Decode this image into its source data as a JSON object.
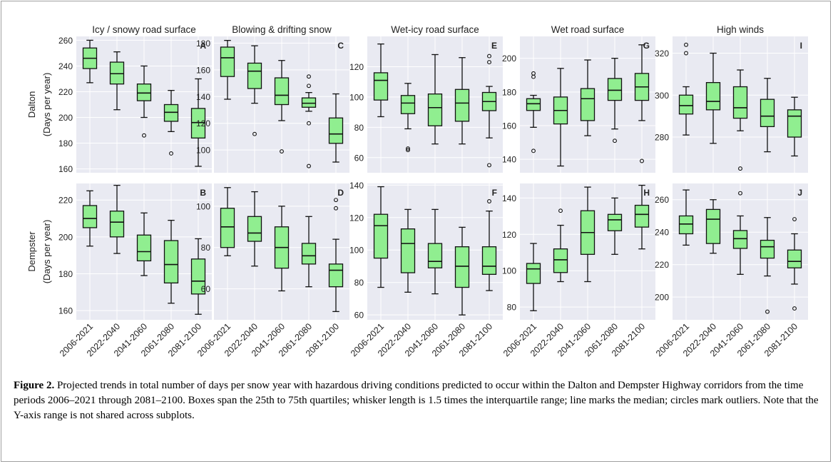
{
  "figure": {
    "label": "Figure 2.",
    "caption": " Projected trends in total number of days per snow year with hazardous driving conditions predicted to occur within the Dalton and Dempster Highway corridors from the time periods 2006–2021 through 2081–2100. Boxes span the 25th to 75th quartiles; whisker length is 1.5 times the interquartile range; line marks the median; circles mark outliers. Note that the Y-axis range is not shared across subplots."
  },
  "colors": {
    "panel_bg": "#e9eaf2",
    "grid": "#ffffff",
    "box_fill": "#90ee90",
    "edge": "#111111"
  },
  "chart_data": {
    "type": "box",
    "categories": [
      "2006-2021",
      "2022-2040",
      "2041-2060",
      "2061-2080",
      "2081-2100"
    ],
    "rows": [
      {
        "name": "Dalton",
        "ylabel": "(Days per year)"
      },
      {
        "name": "Dempster",
        "ylabel": "(Days per year)"
      }
    ],
    "columns": [
      "Icy / snowy road surface",
      "Blowing & drifting snow",
      "Wet-icy road surface",
      "Wet road surface",
      "High winds"
    ],
    "panels": [
      {
        "letter": "A",
        "row": 0,
        "col": 0,
        "ylim": [
          157,
          263
        ],
        "yticks": [
          160,
          180,
          200,
          220,
          240,
          260
        ],
        "boxes": [
          {
            "whislo": 227,
            "q1": 238,
            "med": 246,
            "q3": 254,
            "whishi": 260,
            "fliers": []
          },
          {
            "whislo": 206,
            "q1": 226,
            "med": 234,
            "q3": 243,
            "whishi": 251,
            "fliers": []
          },
          {
            "whislo": 200,
            "q1": 213,
            "med": 219,
            "q3": 226,
            "whishi": 240,
            "fliers": [
              186
            ]
          },
          {
            "whislo": 189,
            "q1": 197,
            "med": 204,
            "q3": 210,
            "whishi": 221,
            "fliers": [
              172
            ]
          },
          {
            "whislo": 162,
            "q1": 184,
            "med": 196,
            "q3": 207,
            "whishi": 230,
            "fliers": []
          }
        ]
      },
      {
        "letter": "C",
        "row": 0,
        "col": 1,
        "ylim": [
          83,
          185
        ],
        "yticks": [
          100,
          120,
          140,
          160,
          180
        ],
        "boxes": [
          {
            "whislo": 138,
            "q1": 155,
            "med": 169,
            "q3": 177,
            "whishi": 182,
            "fliers": []
          },
          {
            "whislo": 135,
            "q1": 146,
            "med": 159,
            "q3": 165,
            "whishi": 178,
            "fliers": [
              112
            ]
          },
          {
            "whislo": 122,
            "q1": 134,
            "med": 141,
            "q3": 154,
            "whishi": 167,
            "fliers": [
              99
            ]
          },
          {
            "whislo": 129,
            "q1": 132,
            "med": 135,
            "q3": 139,
            "whishi": 143,
            "fliers": [
              155,
              148,
              120,
              88
            ]
          },
          {
            "whislo": 91,
            "q1": 105,
            "med": 112,
            "q3": 124,
            "whishi": 142,
            "fliers": []
          }
        ]
      },
      {
        "letter": "E",
        "row": 0,
        "col": 2,
        "ylim": [
          50,
          140
        ],
        "yticks": [
          60,
          80,
          100,
          120
        ],
        "boxes": [
          {
            "whislo": 87,
            "q1": 98,
            "med": 111,
            "q3": 116,
            "whishi": 135,
            "fliers": []
          },
          {
            "whislo": 79,
            "q1": 89,
            "med": 96,
            "q3": 101,
            "whishi": 109,
            "fliers": [
              66,
              65
            ]
          },
          {
            "whislo": 69,
            "q1": 81,
            "med": 93,
            "q3": 102,
            "whishi": 128,
            "fliers": []
          },
          {
            "whislo": 69,
            "q1": 84,
            "med": 96,
            "q3": 105,
            "whishi": 126,
            "fliers": []
          },
          {
            "whislo": 73,
            "q1": 91,
            "med": 97,
            "q3": 103,
            "whishi": 107,
            "fliers": [
              127,
              123,
              55
            ]
          }
        ]
      },
      {
        "letter": "G",
        "row": 0,
        "col": 3,
        "ylim": [
          132,
          213
        ],
        "yticks": [
          140,
          160,
          180,
          200
        ],
        "boxes": [
          {
            "whislo": 159,
            "q1": 169,
            "med": 173,
            "q3": 176,
            "whishi": 178,
            "fliers": [
              191,
              189,
              145
            ]
          },
          {
            "whislo": 136,
            "q1": 161,
            "med": 169,
            "q3": 177,
            "whishi": 194,
            "fliers": []
          },
          {
            "whislo": 154,
            "q1": 163,
            "med": 176,
            "q3": 182,
            "whishi": 199,
            "fliers": []
          },
          {
            "whislo": 158,
            "q1": 175,
            "med": 181,
            "q3": 188,
            "whishi": 200,
            "fliers": [
              151
            ]
          },
          {
            "whislo": 163,
            "q1": 175,
            "med": 183,
            "q3": 191,
            "whishi": 208,
            "fliers": [
              139
            ]
          }
        ]
      },
      {
        "letter": "I",
        "row": 0,
        "col": 4,
        "ylim": [
          263,
          328
        ],
        "yticks": [
          280,
          300,
          320
        ],
        "boxes": [
          {
            "whislo": 281,
            "q1": 291,
            "med": 295,
            "q3": 300,
            "whishi": 304,
            "fliers": [
              324,
              320
            ]
          },
          {
            "whislo": 277,
            "q1": 293,
            "med": 297,
            "q3": 306,
            "whishi": 320,
            "fliers": []
          },
          {
            "whislo": 283,
            "q1": 289,
            "med": 294,
            "q3": 304,
            "whishi": 312,
            "fliers": [
              265
            ]
          },
          {
            "whislo": 273,
            "q1": 285,
            "med": 290,
            "q3": 298,
            "whishi": 308,
            "fliers": []
          },
          {
            "whislo": 271,
            "q1": 280,
            "med": 290,
            "q3": 293,
            "whishi": 299,
            "fliers": []
          }
        ]
      },
      {
        "letter": "B",
        "row": 1,
        "col": 0,
        "ylim": [
          155,
          229
        ],
        "yticks": [
          160,
          180,
          200,
          220
        ],
        "boxes": [
          {
            "whislo": 195,
            "q1": 205,
            "med": 210,
            "q3": 217,
            "whishi": 225,
            "fliers": []
          },
          {
            "whislo": 191,
            "q1": 200,
            "med": 208,
            "q3": 214,
            "whishi": 228,
            "fliers": []
          },
          {
            "whislo": 179,
            "q1": 187,
            "med": 192,
            "q3": 201,
            "whishi": 213,
            "fliers": []
          },
          {
            "whislo": 164,
            "q1": 175,
            "med": 185,
            "q3": 198,
            "whishi": 209,
            "fliers": []
          },
          {
            "whislo": 158,
            "q1": 169,
            "med": 176,
            "q3": 188,
            "whishi": 199,
            "fliers": []
          }
        ]
      },
      {
        "letter": "D",
        "row": 1,
        "col": 1,
        "ylim": [
          45,
          111
        ],
        "yticks": [
          60,
          80,
          100
        ],
        "boxes": [
          {
            "whislo": 76,
            "q1": 80,
            "med": 90,
            "q3": 99,
            "whishi": 109,
            "fliers": []
          },
          {
            "whislo": 71,
            "q1": 83,
            "med": 87,
            "q3": 95,
            "whishi": 107,
            "fliers": []
          },
          {
            "whislo": 59,
            "q1": 70,
            "med": 80,
            "q3": 90,
            "whishi": 100,
            "fliers": []
          },
          {
            "whislo": 61,
            "q1": 72,
            "med": 76,
            "q3": 82,
            "whishi": 95,
            "fliers": []
          },
          {
            "whislo": 49,
            "q1": 61,
            "med": 69,
            "q3": 72,
            "whishi": 84,
            "fliers": [
              103,
              99
            ]
          }
        ]
      },
      {
        "letter": "F",
        "row": 1,
        "col": 2,
        "ylim": [
          57,
          141
        ],
        "yticks": [
          60,
          80,
          100,
          120,
          140
        ],
        "boxes": [
          {
            "whislo": 77,
            "q1": 95,
            "med": 115,
            "q3": 122,
            "whishi": 139,
            "fliers": []
          },
          {
            "whislo": 74,
            "q1": 86,
            "med": 104,
            "q3": 113,
            "whishi": 125,
            "fliers": []
          },
          {
            "whislo": 73,
            "q1": 89,
            "med": 93,
            "q3": 104,
            "whishi": 125,
            "fliers": []
          },
          {
            "whislo": 60,
            "q1": 77,
            "med": 90,
            "q3": 102,
            "whishi": 114,
            "fliers": []
          },
          {
            "whislo": 75,
            "q1": 85,
            "med": 90,
            "q3": 102,
            "whishi": 124,
            "fliers": [
              130
            ]
          }
        ]
      },
      {
        "letter": "H",
        "row": 1,
        "col": 3,
        "ylim": [
          73,
          148
        ],
        "yticks": [
          80,
          100,
          120,
          140
        ],
        "boxes": [
          {
            "whislo": 78,
            "q1": 93,
            "med": 101,
            "q3": 104,
            "whishi": 115,
            "fliers": []
          },
          {
            "whislo": 94,
            "q1": 99,
            "med": 106,
            "q3": 112,
            "whishi": 125,
            "fliers": [
              133
            ]
          },
          {
            "whislo": 94,
            "q1": 109,
            "med": 121,
            "q3": 133,
            "whishi": 146,
            "fliers": []
          },
          {
            "whislo": 109,
            "q1": 122,
            "med": 128,
            "q3": 131,
            "whishi": 140,
            "fliers": []
          },
          {
            "whislo": 112,
            "q1": 124,
            "med": 131,
            "q3": 136,
            "whishi": 147,
            "fliers": []
          }
        ]
      },
      {
        "letter": "J",
        "row": 1,
        "col": 4,
        "ylim": [
          186,
          270
        ],
        "yticks": [
          200,
          220,
          240,
          260
        ],
        "boxes": [
          {
            "whislo": 232,
            "q1": 239,
            "med": 245,
            "q3": 250,
            "whishi": 266,
            "fliers": []
          },
          {
            "whislo": 227,
            "q1": 233,
            "med": 248,
            "q3": 254,
            "whishi": 260,
            "fliers": []
          },
          {
            "whislo": 214,
            "q1": 230,
            "med": 236,
            "q3": 241,
            "whishi": 250,
            "fliers": [
              264
            ]
          },
          {
            "whislo": 213,
            "q1": 224,
            "med": 231,
            "q3": 235,
            "whishi": 249,
            "fliers": [
              191
            ]
          },
          {
            "whislo": 208,
            "q1": 218,
            "med": 222,
            "q3": 229,
            "whishi": 239,
            "fliers": [
              248,
              193
            ]
          }
        ]
      }
    ]
  }
}
